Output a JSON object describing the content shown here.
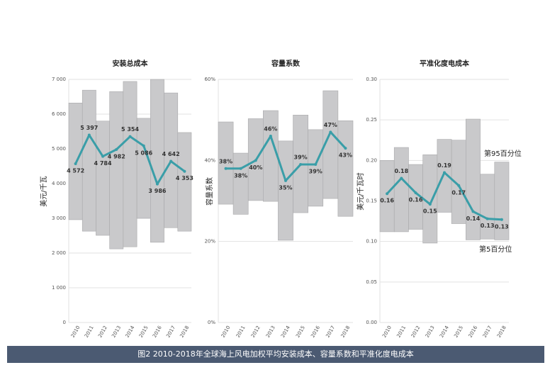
{
  "chart_data": [
    {
      "type": "line",
      "title": "安装总成本",
      "y_label": "美元/千瓦",
      "categories": [
        "2010",
        "2011",
        "2012",
        "2013",
        "2014",
        "2015",
        "2016",
        "2017",
        "2018"
      ],
      "values": [
        4572,
        5397,
        4784,
        4982,
        5354,
        5086,
        3986,
        4642,
        4353
      ],
      "value_labels": [
        "4 572",
        "5 397",
        "4 784",
        "4 982",
        "5 354",
        "5 086",
        "3 986",
        "4 642",
        "4 353"
      ],
      "upper": [
        6320,
        6690,
        5800,
        6650,
        6940,
        5880,
        7000,
        6610,
        5470
      ],
      "lower": [
        2960,
        2630,
        2510,
        2120,
        2180,
        3000,
        2310,
        2730,
        2630
      ],
      "color": "#3a9ea8",
      "band_color": "#c9c9cb",
      "ylim": [
        0,
        7000
      ],
      "yticks": [
        0,
        {
          "value": 1000,
          "label": "1 000"
        },
        {
          "value": 2000,
          "label": "2 000"
        },
        {
          "value": 3000,
          "label": "3 000"
        },
        {
          "value": 4000,
          "label": "4 000"
        },
        {
          "value": 5000,
          "label": "5 000"
        },
        {
          "value": 6000,
          "label": "6 000"
        },
        {
          "value": 7000,
          "label": "7 000"
        }
      ],
      "grid": true
    },
    {
      "type": "line",
      "title": "容量系数",
      "y_label": "容量系数",
      "categories": [
        "2010",
        "2011",
        "2012",
        "2013",
        "2014",
        "2015",
        "2016",
        "2017",
        "2018"
      ],
      "values": [
        38,
        38,
        40,
        46,
        35,
        39,
        39,
        47,
        43
      ],
      "value_labels": [
        "38%",
        "38%",
        "40%",
        "46%",
        "35%",
        "39%",
        "39%",
        "47%",
        "43%"
      ],
      "upper": [
        49.5,
        41.8,
        50.3,
        52.3,
        44.8,
        51.2,
        47.6,
        57.2,
        49.8
      ],
      "lower": [
        29.2,
        26.7,
        30.1,
        29.9,
        20.3,
        27.1,
        28.7,
        30.6,
        26.2
      ],
      "color": "#3a9ea8",
      "band_color": "#c9c9cb",
      "ylim": [
        0,
        60
      ],
      "yticks": [
        {
          "value": 0,
          "label": "0%"
        },
        {
          "value": 20,
          "label": "20%"
        },
        {
          "value": 40,
          "label": "40%"
        },
        {
          "value": 60,
          "label": "60%"
        }
      ],
      "grid": true
    },
    {
      "type": "line",
      "title": "平准化度电成本",
      "y_label": "美元/千瓦时",
      "categories": [
        "2010",
        "2011",
        "2012",
        "2013",
        "2014",
        "2015",
        "2016",
        "2017",
        "2018"
      ],
      "values": [
        0.159,
        0.178,
        0.16,
        0.146,
        0.185,
        0.169,
        0.137,
        0.128,
        0.127
      ],
      "value_labels": [
        "0.16",
        "0.18",
        "0.16",
        "0.15",
        "0.19",
        "0.17",
        "0.14",
        "0.13",
        "0.13"
      ],
      "upper": [
        0.2,
        0.216,
        0.195,
        0.207,
        0.226,
        0.225,
        0.251,
        0.183,
        0.198
      ],
      "lower": [
        0.112,
        0.112,
        0.115,
        0.098,
        0.136,
        0.122,
        0.102,
        0.103,
        0.102
      ],
      "color": "#3a9ea8",
      "band_color": "#c9c9cb",
      "ylim": [
        0,
        0.3
      ],
      "yticks": [
        {
          "value": 0,
          "label": "0.00"
        },
        {
          "value": 0.05,
          "label": "0.05"
        },
        {
          "value": 0.1,
          "label": "0.10"
        },
        {
          "value": 0.15,
          "label": "0.15"
        },
        {
          "value": 0.2,
          "label": "0.20"
        },
        {
          "value": 0.25,
          "label": "0.25"
        },
        {
          "value": 0.3,
          "label": "0.30"
        }
      ],
      "grid": true,
      "annotations": [
        "第95百分位",
        "第5百分位"
      ]
    }
  ],
  "caption": "图2 2010-2018年全球海上风电加权平均安装成本、容量系数和平准化度电成本"
}
